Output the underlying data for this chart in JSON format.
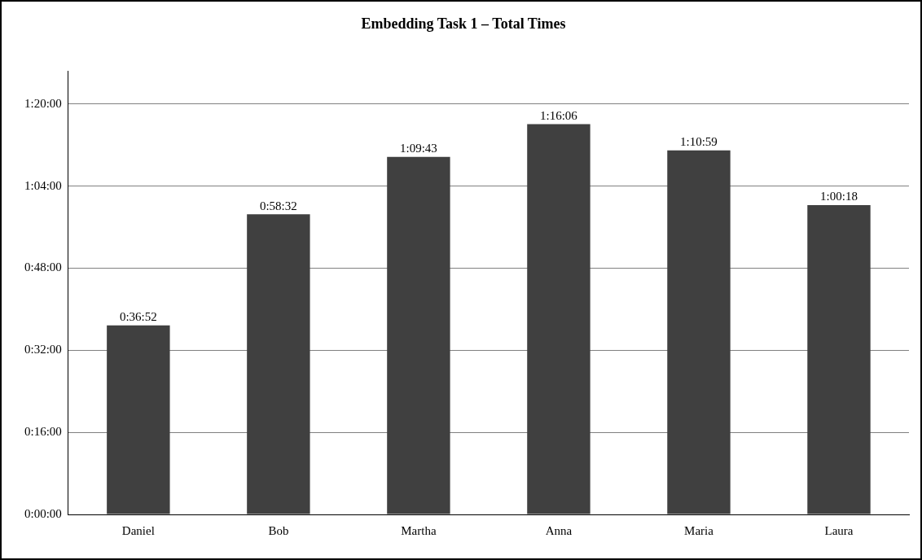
{
  "chart_data": {
    "type": "bar",
    "title": "Embedding Task 1 – Total Times",
    "categories": [
      "Daniel",
      "Bob",
      "Martha",
      "Anna",
      "Maria",
      "Laura"
    ],
    "values": [
      36.87,
      58.53,
      69.72,
      76.1,
      70.98,
      60.3
    ],
    "value_labels": [
      "0:36:52",
      "0:58:32",
      "1:09:43",
      "1:16:06",
      "1:10:59",
      "1:00:18"
    ],
    "color": "#404040",
    "ylim": [
      0,
      86.4
    ],
    "yticks": [
      {
        "value": 0,
        "label": "0:00:00"
      },
      {
        "value": 16,
        "label": "0:16:00"
      },
      {
        "value": 32,
        "label": "0:32:00"
      },
      {
        "value": 48,
        "label": "0:48:00"
      },
      {
        "value": 64,
        "label": "1:04:00"
      },
      {
        "value": 80,
        "label": "1:20:00"
      }
    ],
    "grid": "y"
  }
}
